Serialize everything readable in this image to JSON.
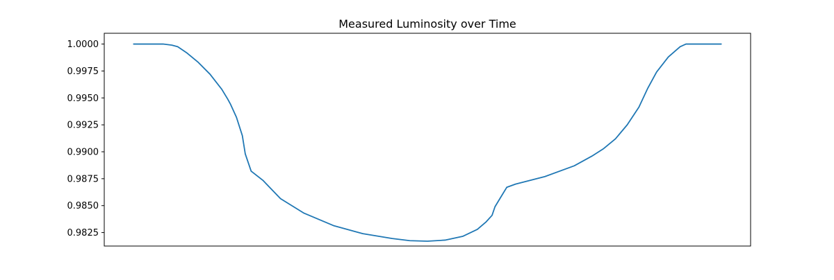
{
  "chart_data": {
    "type": "line",
    "title": "Measured Luminosity over Time",
    "xlabel": "",
    "ylabel": "",
    "x_ticks_visible": false,
    "grid": false,
    "legend": "none",
    "line_color": "#1f77b4",
    "xlim": [
      -0.05,
      1.05
    ],
    "ylim": [
      0.98125,
      1.001
    ],
    "yticks": [
      0.9825,
      0.985,
      0.9875,
      0.99,
      0.9925,
      0.995,
      0.9975,
      1.0
    ],
    "ytick_labels": [
      "0.9825",
      "0.9850",
      "0.9875",
      "0.9900",
      "0.9925",
      "0.9950",
      "0.9975",
      "1.0000"
    ],
    "series": [
      {
        "x": [
          0.0,
          0.05,
          0.065,
          0.075,
          0.09,
          0.11,
          0.13,
          0.15,
          0.16,
          0.165,
          0.175,
          0.185,
          0.19,
          0.2,
          0.22,
          0.25,
          0.29,
          0.34,
          0.39,
          0.44,
          0.47,
          0.5,
          0.53,
          0.56,
          0.585,
          0.6,
          0.61,
          0.615,
          0.625,
          0.635,
          0.65,
          0.7,
          0.75,
          0.78,
          0.8,
          0.82,
          0.84,
          0.86,
          0.875,
          0.89,
          0.91,
          0.93,
          0.94,
          0.96,
          1.0
        ],
        "y": [
          1.0,
          1.0,
          0.9999,
          0.99975,
          0.9992,
          0.9983,
          0.9972,
          0.9958,
          0.9949,
          0.9944,
          0.9932,
          0.9915,
          0.9898,
          0.9882,
          0.98735,
          0.98565,
          0.9843,
          0.98315,
          0.9824,
          0.98195,
          0.98175,
          0.9817,
          0.9818,
          0.98215,
          0.9828,
          0.9835,
          0.9841,
          0.9849,
          0.9858,
          0.9867,
          0.987,
          0.9877,
          0.9887,
          0.9896,
          0.9903,
          0.9912,
          0.9925,
          0.99415,
          0.9959,
          0.9974,
          0.9988,
          0.99975,
          1.0,
          1.0,
          1.0
        ]
      }
    ]
  }
}
